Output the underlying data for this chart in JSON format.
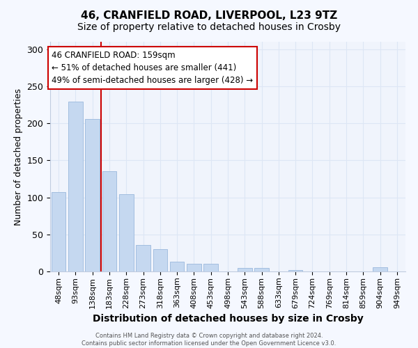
{
  "title": "46, CRANFIELD ROAD, LIVERPOOL, L23 9TZ",
  "subtitle": "Size of property relative to detached houses in Crosby",
  "xlabel": "Distribution of detached houses by size in Crosby",
  "ylabel": "Number of detached properties",
  "footer_line1": "Contains HM Land Registry data © Crown copyright and database right 2024.",
  "footer_line2": "Contains public sector information licensed under the Open Government Licence v3.0.",
  "bar_categories": [
    "48sqm",
    "93sqm",
    "138sqm",
    "183sqm",
    "228sqm",
    "273sqm",
    "318sqm",
    "363sqm",
    "408sqm",
    "453sqm",
    "498sqm",
    "543sqm",
    "588sqm",
    "633sqm",
    "679sqm",
    "724sqm",
    "769sqm",
    "814sqm",
    "859sqm",
    "904sqm",
    "949sqm"
  ],
  "bar_values": [
    107,
    229,
    206,
    135,
    104,
    36,
    30,
    13,
    10,
    10,
    0,
    5,
    5,
    0,
    2,
    0,
    0,
    0,
    0,
    6,
    0
  ],
  "bar_color": "#c5d8f0",
  "bar_edgecolor": "#9ab8dc",
  "vline_x": 2.5,
  "vline_color": "#cc0000",
  "ylim": [
    0,
    310
  ],
  "yticks": [
    0,
    50,
    100,
    150,
    200,
    250,
    300
  ],
  "annotation_line1": "46 CRANFIELD ROAD: 159sqm",
  "annotation_line2": "← 51% of detached houses are smaller (441)",
  "annotation_line3": "49% of semi-detached houses are larger (428) →",
  "annotation_box_facecolor": "white",
  "annotation_box_edgecolor": "#cc0000",
  "bg_color": "#f5f8ff",
  "plot_bg_color": "#f0f4fc",
  "grid_color": "#dde6f5",
  "spine_color": "#c0cce0",
  "title_fontsize": 11,
  "subtitle_fontsize": 10,
  "ylabel_fontsize": 9,
  "xlabel_fontsize": 10,
  "ytick_fontsize": 9,
  "xtick_fontsize": 8,
  "annotation_fontsize": 8.5,
  "footer_fontsize": 6
}
